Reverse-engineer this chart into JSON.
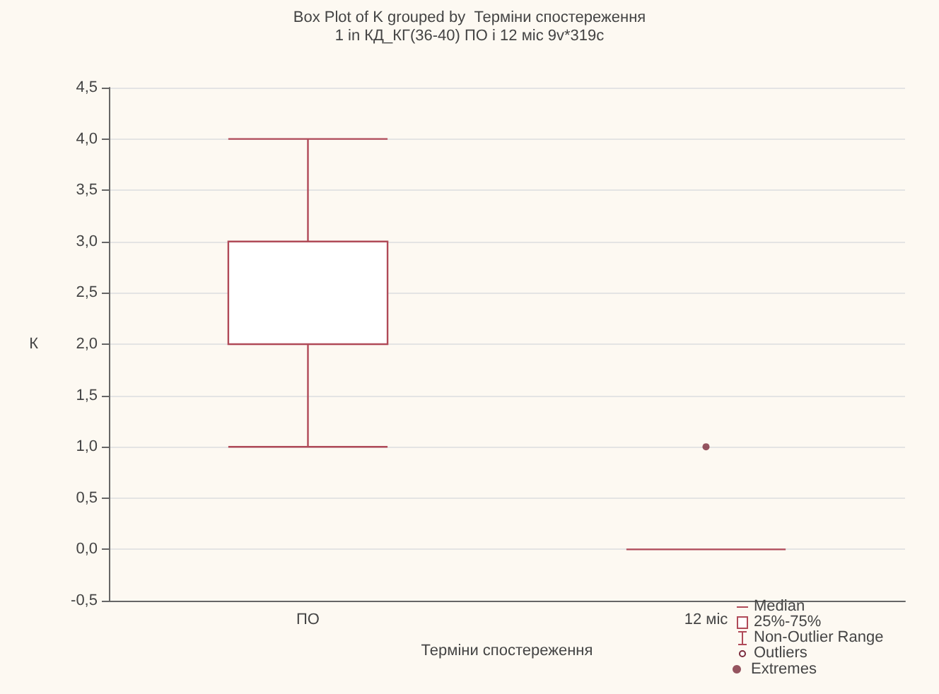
{
  "chart_data": {
    "type": "box",
    "title": "Box Plot of K grouped by  Терміни спостереження",
    "subtitle": "1 in КД_КГ(36-40) ПО і 12 міс 9v*319c",
    "xlabel": "Терміни спостереження",
    "ylabel": "К",
    "categories": [
      "ПО",
      "12 міс"
    ],
    "series": [
      {
        "color": "#b04a58",
        "boxes": [
          {
            "low": 1,
            "q1": 2,
            "median": 2,
            "q3": 3,
            "high": 4
          },
          {
            "low": 0,
            "q1": 0,
            "median": 0,
            "q3": 0,
            "high": 0
          }
        ]
      },
      {
        "type": "scatter",
        "name": "Extremes",
        "color": "#7a2a3a",
        "x": [
          "12 міс"
        ],
        "values": [
          1
        ]
      }
    ],
    "annotations": [
      "Median",
      "25%-75%",
      "Non-Outlier Range",
      "Outliers"
    ],
    "ylim": [
      -0.5,
      4.5
    ],
    "yticks": [
      {
        "value": -0.5,
        "label": "-0,5"
      },
      {
        "value": 0,
        "label": "0,0"
      },
      {
        "value": 0.5,
        "label": "0,5"
      },
      {
        "value": 1,
        "label": "1,0"
      },
      {
        "value": 1.5,
        "label": "1,5"
      },
      {
        "value": 2,
        "label": "2,0"
      },
      {
        "value": 2.5,
        "label": "2,5"
      },
      {
        "value": 3,
        "label": "3,0"
      },
      {
        "value": 3.5,
        "label": "3,5"
      },
      {
        "value": 4,
        "label": "4,0"
      },
      {
        "value": 4.5,
        "label": "4,5"
      }
    ],
    "grid": "y",
    "legend": "bottom right",
    "marker": "circle"
  }
}
